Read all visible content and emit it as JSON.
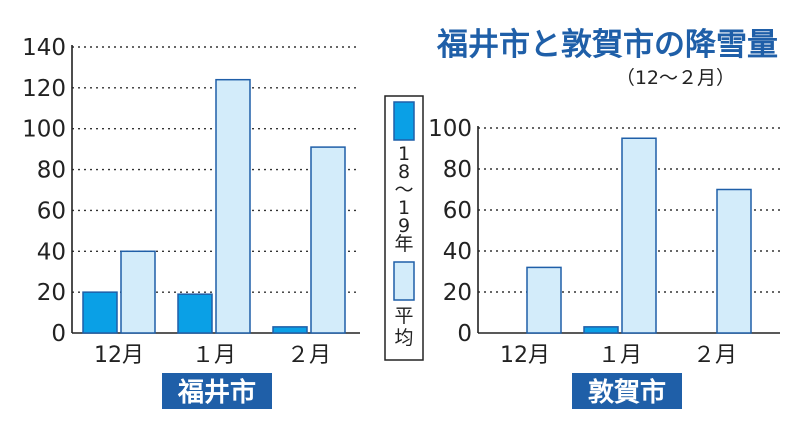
{
  "title": "福井市と敦賀市の降雪量",
  "subtitle": "（12～２月）",
  "colors": {
    "recent": "#0aa0e6",
    "average": "#d3ecfa",
    "bar_outline": "#1f5fa8",
    "city_label_bg": "#1f5fa8",
    "title": "#1f5fa8"
  },
  "legend": {
    "recent_label": "18～19年",
    "average_label": "平均"
  },
  "chart_data": [
    {
      "type": "bar",
      "name": "福井市",
      "categories": [
        "12月",
        "１月",
        "２月"
      ],
      "series": [
        {
          "name": "18～19年",
          "values": [
            20,
            19,
            3
          ]
        },
        {
          "name": "平均",
          "values": [
            40,
            124,
            91
          ]
        }
      ],
      "ylim": [
        0,
        140
      ],
      "yticks": [
        0,
        20,
        40,
        60,
        80,
        100,
        120,
        140
      ],
      "grid": true
    },
    {
      "type": "bar",
      "name": "敦賀市",
      "categories": [
        "12月",
        "１月",
        "２月"
      ],
      "series": [
        {
          "name": "18～19年",
          "values": [
            0,
            3,
            0
          ]
        },
        {
          "name": "平均",
          "values": [
            32,
            95,
            70
          ]
        }
      ],
      "ylim": [
        0,
        100
      ],
      "yticks": [
        0,
        20,
        40,
        60,
        80,
        100
      ],
      "grid": true
    }
  ]
}
